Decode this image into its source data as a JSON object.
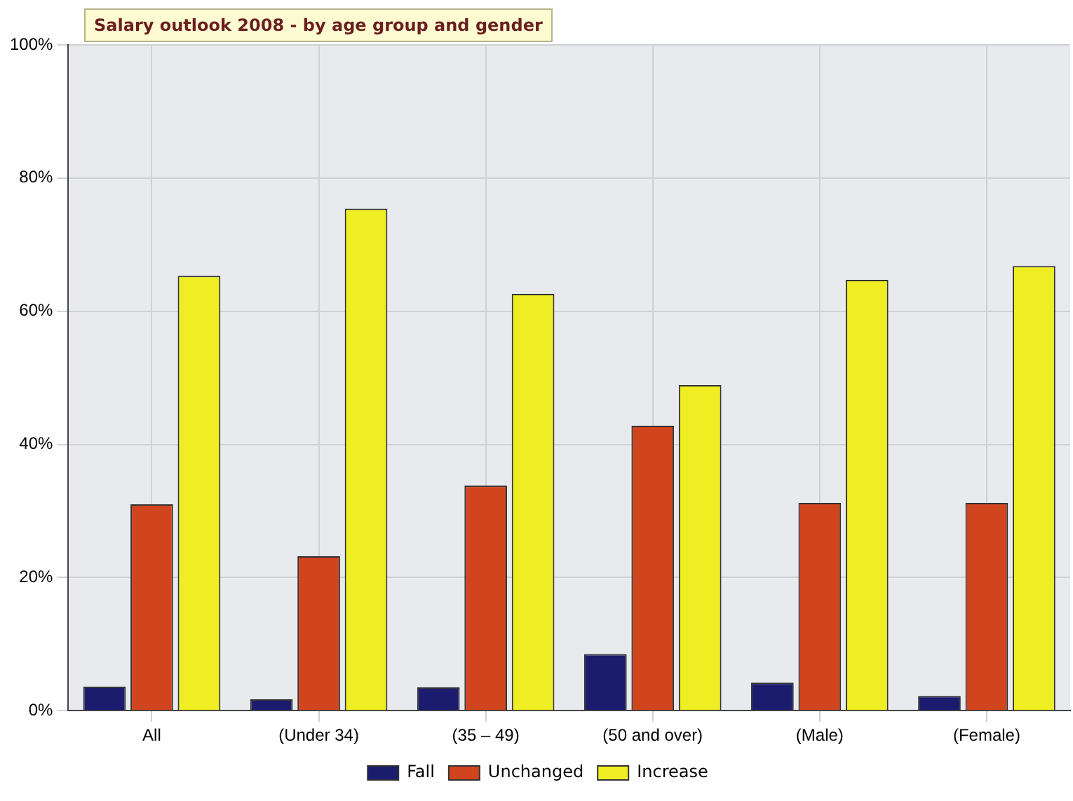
{
  "chart_data": {
    "type": "bar",
    "title": "Salary outlook 2008 - by age group and gender",
    "categories": [
      "All",
      "(Under 34)",
      "(35 – 49)",
      "(50 and over)",
      "(Male)",
      "(Female)"
    ],
    "series": [
      {
        "name": "Fall",
        "color": "#1c1c6e",
        "values": [
          3.6,
          1.7,
          3.5,
          8.5,
          4.2,
          2.2
        ]
      },
      {
        "name": "Unchanged",
        "color": "#d0441e",
        "values": [
          31,
          23.2,
          33.8,
          42.8,
          31.2,
          31.2
        ]
      },
      {
        "name": "Increase",
        "color": "#eeee22",
        "values": [
          65.3,
          75.4,
          62.6,
          48.9,
          64.7,
          66.8
        ]
      }
    ],
    "ylim": [
      0,
      100
    ],
    "yticks": [
      {
        "value": 0,
        "label": "0%"
      },
      {
        "value": 20,
        "label": "20%"
      },
      {
        "value": 40,
        "label": "40%"
      },
      {
        "value": 60,
        "label": "60%"
      },
      {
        "value": 80,
        "label": "80%"
      },
      {
        "value": 100,
        "label": "100%"
      }
    ],
    "grid": true,
    "legend": "bottom"
  }
}
